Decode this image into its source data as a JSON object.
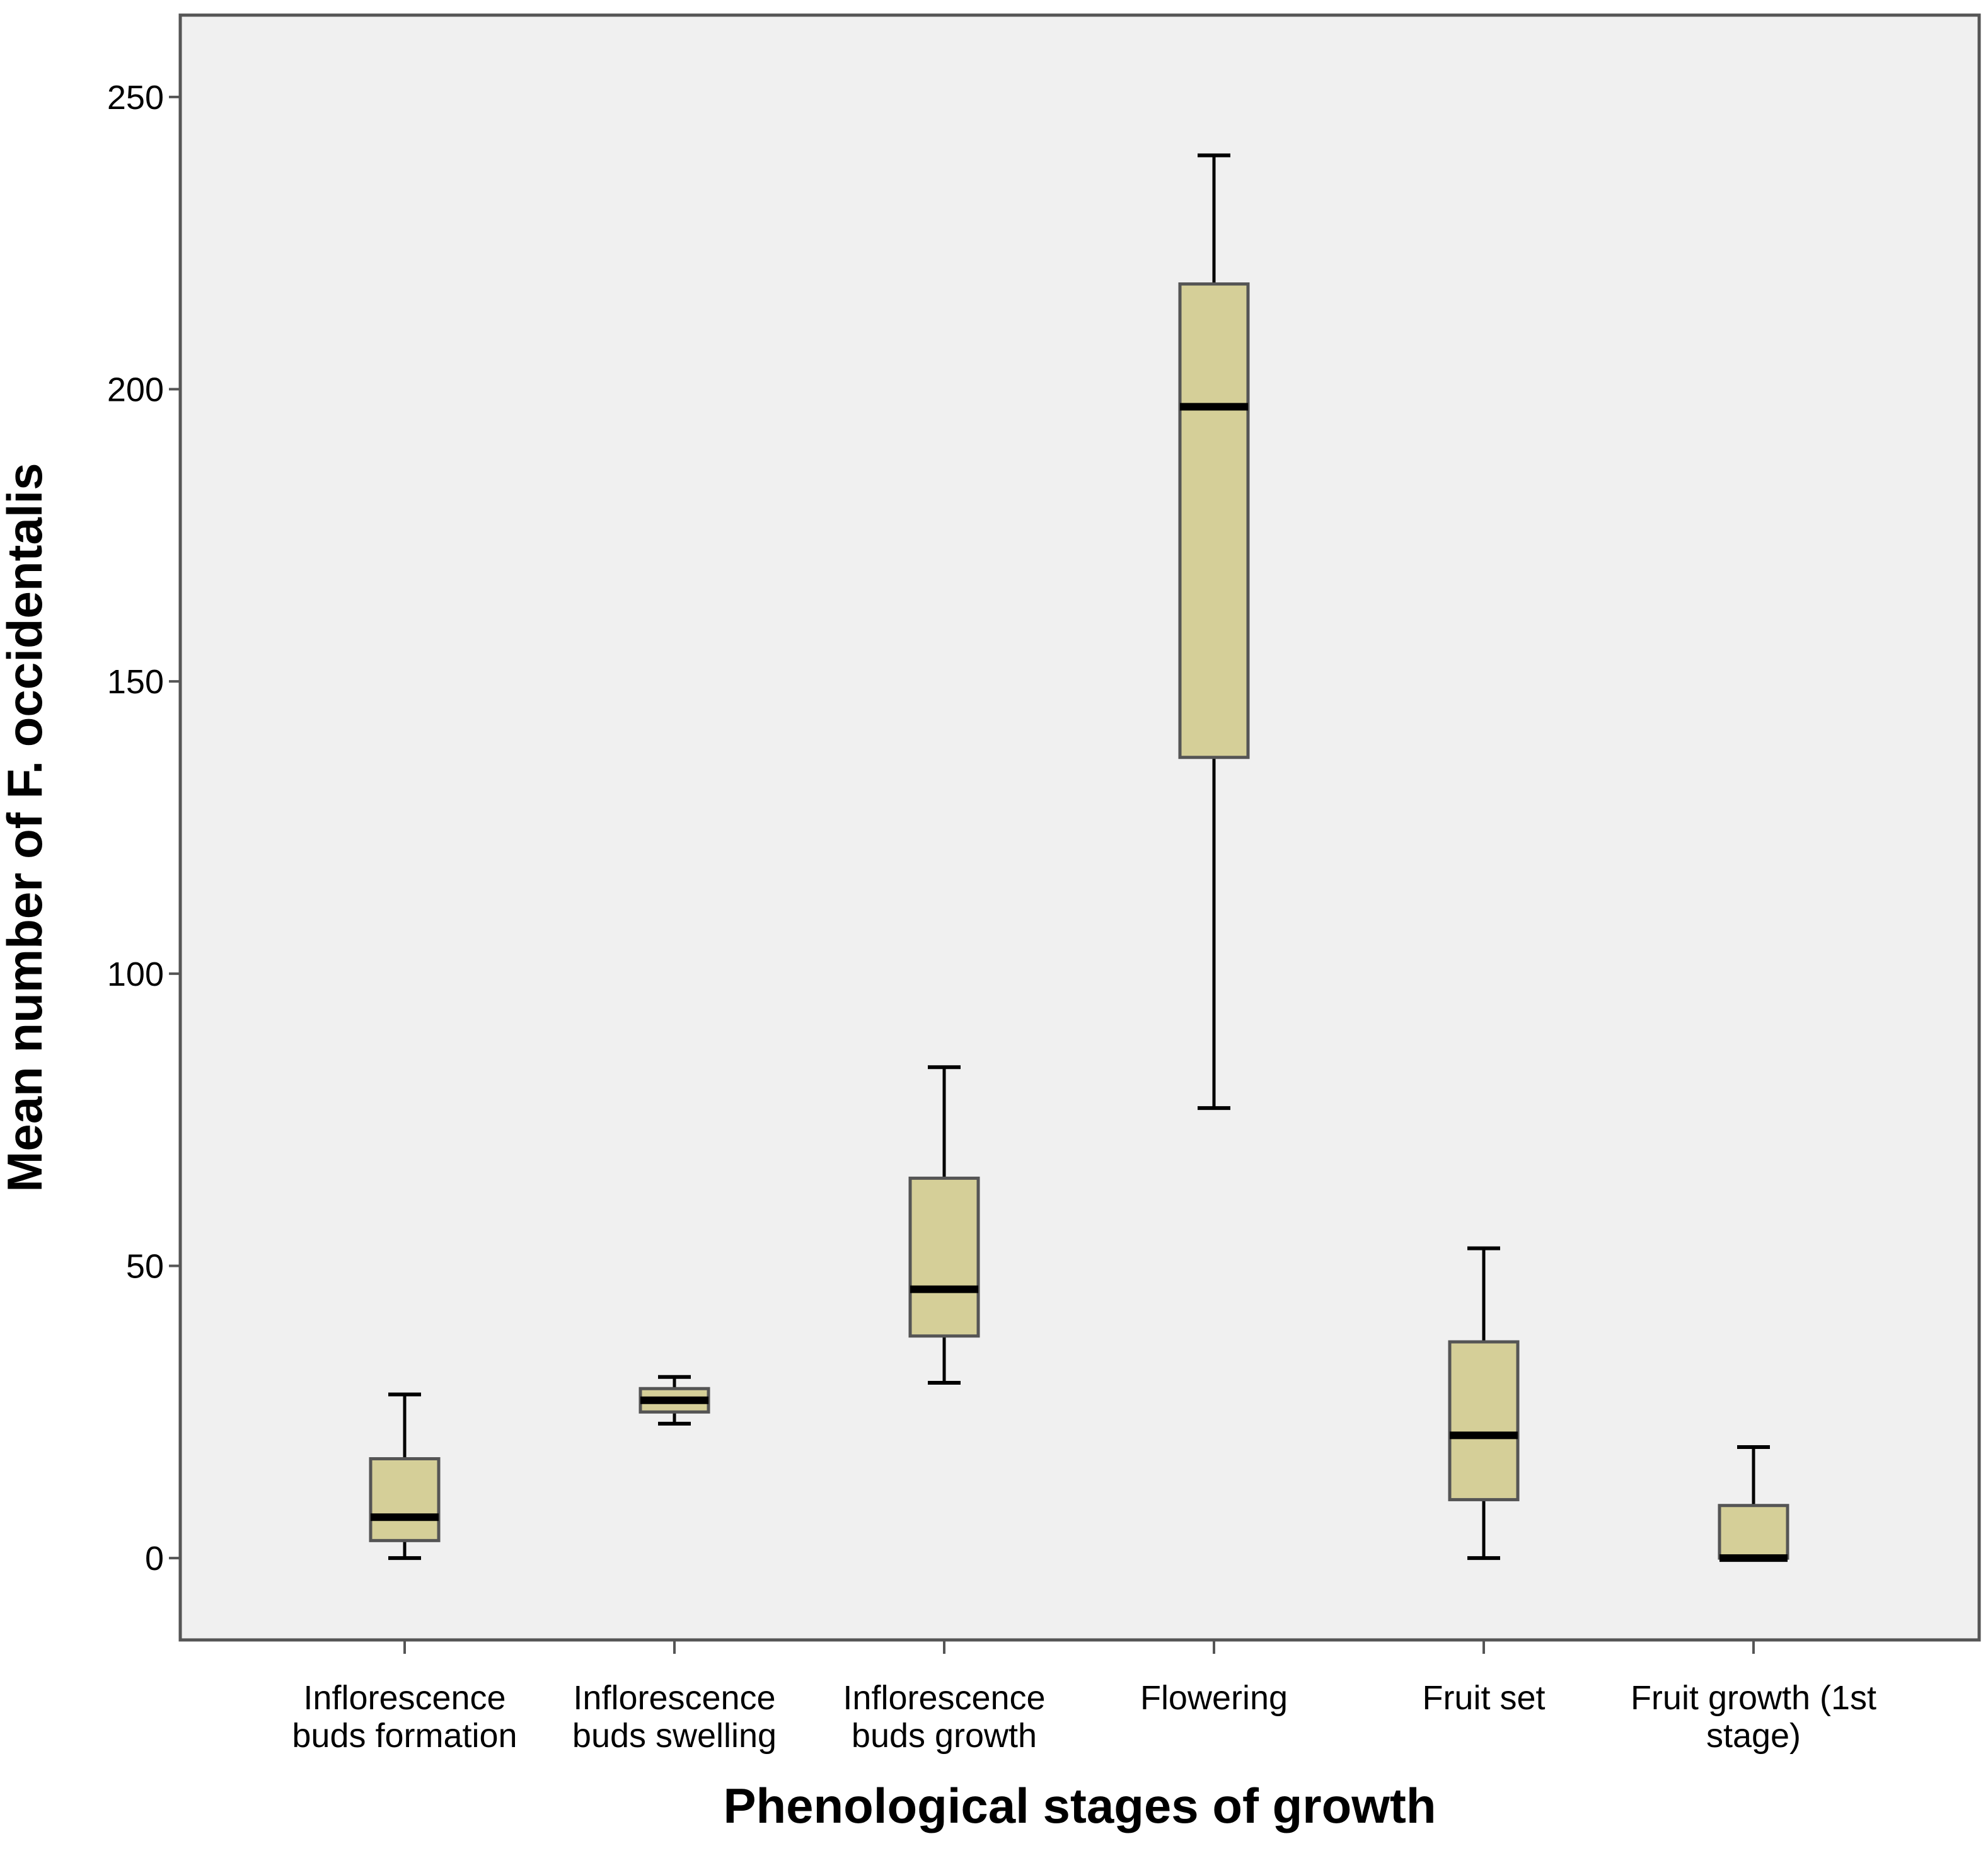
{
  "chart_data": {
    "type": "boxplot",
    "title": "",
    "xlabel": "Phenological stages of growth",
    "ylabel": "Mean number of F. occidentalis",
    "ylim": [
      -14,
      264
    ],
    "yticks": [
      0,
      50,
      100,
      150,
      200,
      250
    ],
    "grid": false,
    "colors": {
      "plot_background": "#f0f0f0",
      "box_fill": "#d5cf98",
      "box_stroke": "#555555",
      "median": "#000000",
      "whisker": "#000000",
      "frame": "#555555"
    },
    "categories": [
      [
        "Inflorescence",
        "buds formation"
      ],
      [
        "Inflorescence",
        "buds swelling"
      ],
      [
        "Inflorescence",
        "buds growth"
      ],
      [
        "Flowering"
      ],
      [
        "Fruit set"
      ],
      [
        "Fruit growth (1st",
        "stage)"
      ]
    ],
    "boxes": [
      {
        "min": 0,
        "q1": 3,
        "median": 7,
        "q3": 17,
        "max": 28
      },
      {
        "min": 23,
        "q1": 25,
        "median": 27,
        "q3": 29,
        "max": 31
      },
      {
        "min": 30,
        "q1": 38,
        "median": 46,
        "q3": 65,
        "max": 84
      },
      {
        "min": 77,
        "q1": 137,
        "median": 197,
        "q3": 218,
        "max": 240
      },
      {
        "min": 0,
        "q1": 10,
        "median": 21,
        "q3": 37,
        "max": 53
      },
      {
        "min": 0,
        "q1": 0,
        "median": 0,
        "q3": 9,
        "max": 19
      }
    ]
  }
}
